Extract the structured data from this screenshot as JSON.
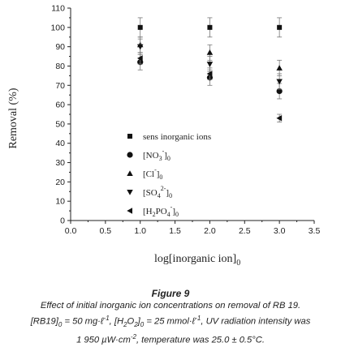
{
  "chart_data": {
    "type": "scatter",
    "title": "",
    "xlabel": "log[inorganic ion]",
    "xlabel_sub": "0",
    "ylabel": "Removal (%)",
    "xlim": [
      0,
      3.5
    ],
    "ylim": [
      0,
      110
    ],
    "xticks": [
      "0.0",
      "0.5",
      "1.0",
      "1.5",
      "2.0",
      "2.5",
      "3.0",
      "3.5"
    ],
    "yticks": [
      "0",
      "10",
      "20",
      "30",
      "40",
      "50",
      "60",
      "70",
      "80",
      "90",
      "100",
      "110"
    ],
    "grid": false,
    "legend_position": "center-right",
    "series": [
      {
        "name": "sens  inorganic ions",
        "marker": "square",
        "x": [
          1,
          2,
          3
        ],
        "y": [
          100,
          100,
          100
        ],
        "err": [
          5,
          5,
          5
        ]
      },
      {
        "name": "[NO3-]0",
        "marker": "circle",
        "x": [
          1,
          2,
          3
        ],
        "y": [
          82,
          74,
          67
        ],
        "err": [
          4,
          4,
          4
        ]
      },
      {
        "name": "[Cl-]0",
        "marker": "triangle-up",
        "x": [
          1,
          2,
          3
        ],
        "y": [
          91,
          87,
          79
        ],
        "err": [
          4,
          4,
          4
        ]
      },
      {
        "name": "[SO42-]0",
        "marker": "triangle-down",
        "x": [
          1,
          2,
          3
        ],
        "y": [
          90,
          81,
          72
        ],
        "err": [
          4,
          4,
          4
        ]
      },
      {
        "name": "[H2PO4-]0",
        "marker": "triangle-left",
        "x": [
          1,
          2,
          3
        ],
        "y": [
          84,
          76,
          53
        ],
        "err": [
          3,
          3,
          2
        ]
      }
    ],
    "legend_labels": [
      {
        "text": "sens  inorganic ions"
      },
      {
        "pre": "[NO",
        "sub": "3",
        "sup": "-",
        "post": "]",
        "post_sub": "0"
      },
      {
        "pre": "[Cl",
        "sub": "",
        "sup": "-",
        "post": "]",
        "post_sub": "0"
      },
      {
        "pre": "[SO",
        "sub": "4",
        "sup": "2-",
        "post": "]",
        "post_sub": "0"
      },
      {
        "pre": "[H",
        "sub": "2",
        "mid": "PO",
        "sub2": "4",
        "sup": "-",
        "post": "]",
        "post_sub": "0"
      }
    ]
  },
  "caption": {
    "figure_label": "Figure 9",
    "line1": "Effect of initial inorganic ion concentrations on removal of RB 19.",
    "line2_html": "[RB19]<sub>0</sub> = 50 mg·ℓ<sup>-1</sup>, [H<sub>2</sub>O<sub>2</sub>]<sub>0</sub> = 25 mmol·ℓ<sup>-1</sup>, UV radiation intensity was",
    "line3_html": "1 950 µW·cm<sup>-2</sup>, temperature was 25.0 ± 0.5°C."
  }
}
